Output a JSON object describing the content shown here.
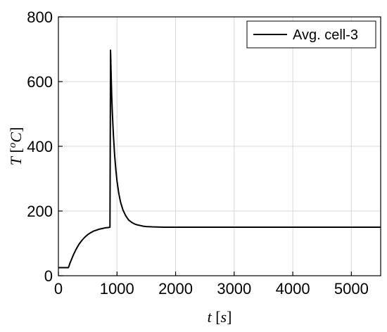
{
  "chart_data": {
    "type": "line",
    "title": "",
    "xlabel": {
      "var": "t",
      "unit": "s"
    },
    "ylabel": {
      "var": "T",
      "unit_sup": "o",
      "unit": "C"
    },
    "xlim": [
      0,
      5500
    ],
    "ylim": [
      0,
      800
    ],
    "xticks": [
      0,
      1000,
      2000,
      3000,
      4000,
      5000
    ],
    "yticks": [
      0,
      200,
      400,
      600,
      800
    ],
    "grid": true,
    "legend_position": "top-right",
    "series": [
      {
        "name": "Avg. cell-3",
        "color": "#000000",
        "x": [
          0,
          170,
          175,
          200,
          250,
          300,
          350,
          400,
          450,
          500,
          550,
          600,
          650,
          700,
          750,
          800,
          850,
          880,
          880,
          890,
          900,
          910,
          920,
          940,
          960,
          980,
          1000,
          1030,
          1060,
          1100,
          1150,
          1200,
          1250,
          1300,
          1350,
          1400,
          1450,
          1500,
          1600,
          1700,
          1800,
          2000,
          3000,
          4000,
          5000,
          5500
        ],
        "y": [
          25,
          25,
          27,
          40,
          62,
          81,
          97,
          109,
          119,
          127,
          133,
          138,
          141,
          144,
          146,
          148,
          149,
          150,
          150,
          697,
          620,
          555,
          505,
          430,
          372,
          328,
          293,
          255,
          228,
          204,
          185,
          172,
          165,
          160,
          157,
          155,
          153,
          152,
          151,
          150.5,
          150,
          150,
          150,
          150,
          150,
          150
        ]
      }
    ]
  }
}
